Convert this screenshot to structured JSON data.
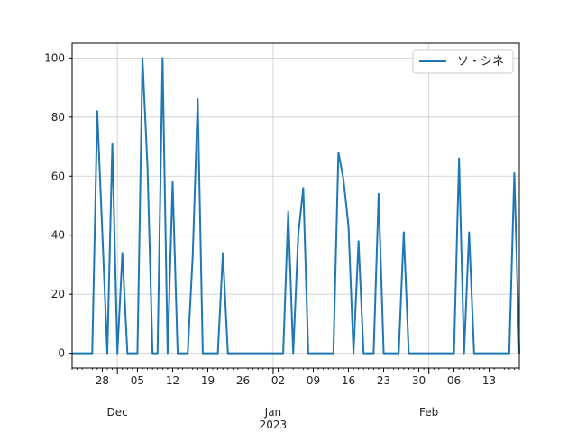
{
  "chart_data": {
    "type": "line",
    "title": "",
    "xlabel": "",
    "ylabel": "",
    "x_range": [
      "2022-11-22",
      "2023-02-19"
    ],
    "ylim": [
      -5,
      105
    ],
    "y_ticks": [
      0,
      20,
      40,
      60,
      80,
      100
    ],
    "x_minor_tick_labels": [
      {
        "date": "2022-11-28",
        "label": "28"
      },
      {
        "date": "2022-12-05",
        "label": "05"
      },
      {
        "date": "2022-12-12",
        "label": "12"
      },
      {
        "date": "2022-12-19",
        "label": "19"
      },
      {
        "date": "2022-12-26",
        "label": "26"
      },
      {
        "date": "2023-01-02",
        "label": "02"
      },
      {
        "date": "2023-01-09",
        "label": "09"
      },
      {
        "date": "2023-01-16",
        "label": "16"
      },
      {
        "date": "2023-01-23",
        "label": "23"
      },
      {
        "date": "2023-01-30",
        "label": "30"
      },
      {
        "date": "2023-02-06",
        "label": "06"
      },
      {
        "date": "2023-02-13",
        "label": "13"
      }
    ],
    "x_major_tick_labels": [
      {
        "date": "2022-12-01",
        "label": "Dec",
        "sublabel": ""
      },
      {
        "date": "2023-01-01",
        "label": "Jan",
        "sublabel": "2023"
      },
      {
        "date": "2023-02-01",
        "label": "Feb",
        "sublabel": ""
      }
    ],
    "grid": true,
    "legend_position": "top-right",
    "line_color": "#1f77b4",
    "series": [
      {
        "name": "ソ・シネ",
        "points": [
          [
            "2022-11-22",
            0
          ],
          [
            "2022-11-26",
            0
          ],
          [
            "2022-11-27",
            82
          ],
          [
            "2022-11-29",
            0
          ],
          [
            "2022-11-30",
            71
          ],
          [
            "2022-12-01",
            0
          ],
          [
            "2022-12-02",
            34
          ],
          [
            "2022-12-03",
            0
          ],
          [
            "2022-12-05",
            0
          ],
          [
            "2022-12-06",
            100
          ],
          [
            "2022-12-07",
            63
          ],
          [
            "2022-12-08",
            0
          ],
          [
            "2022-12-09",
            0
          ],
          [
            "2022-12-10",
            100
          ],
          [
            "2022-12-11",
            0
          ],
          [
            "2022-12-12",
            58
          ],
          [
            "2022-12-13",
            0
          ],
          [
            "2022-12-15",
            0
          ],
          [
            "2022-12-16",
            33
          ],
          [
            "2022-12-17",
            86
          ],
          [
            "2022-12-18",
            0
          ],
          [
            "2022-12-21",
            0
          ],
          [
            "2022-12-22",
            34
          ],
          [
            "2022-12-23",
            0
          ],
          [
            "2023-01-03",
            0
          ],
          [
            "2023-01-04",
            48
          ],
          [
            "2023-01-05",
            0
          ],
          [
            "2023-01-06",
            40
          ],
          [
            "2023-01-07",
            56
          ],
          [
            "2023-01-08",
            0
          ],
          [
            "2023-01-13",
            0
          ],
          [
            "2023-01-14",
            68
          ],
          [
            "2023-01-15",
            59
          ],
          [
            "2023-01-16",
            43
          ],
          [
            "2023-01-17",
            0
          ],
          [
            "2023-01-18",
            38
          ],
          [
            "2023-01-19",
            0
          ],
          [
            "2023-01-21",
            0
          ],
          [
            "2023-01-22",
            54
          ],
          [
            "2023-01-23",
            0
          ],
          [
            "2023-01-26",
            0
          ],
          [
            "2023-01-27",
            41
          ],
          [
            "2023-01-28",
            0
          ],
          [
            "2023-02-06",
            0
          ],
          [
            "2023-02-07",
            66
          ],
          [
            "2023-02-08",
            0
          ],
          [
            "2023-02-09",
            41
          ],
          [
            "2023-02-10",
            0
          ],
          [
            "2023-02-17",
            0
          ],
          [
            "2023-02-18",
            61
          ],
          [
            "2023-02-19",
            0
          ]
        ]
      }
    ]
  }
}
